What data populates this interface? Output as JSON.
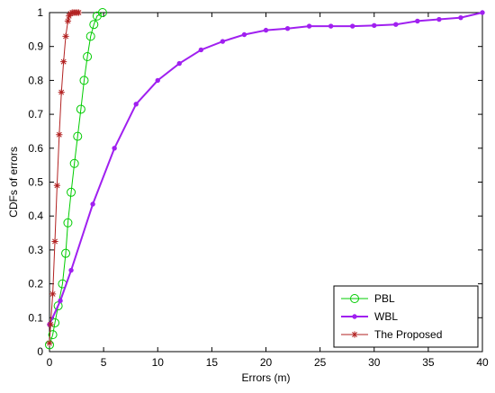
{
  "chart_data": {
    "type": "line",
    "title": "",
    "xlabel": "Errors (m)",
    "ylabel": "CDFs of errors",
    "xlim": [
      0,
      40
    ],
    "ylim": [
      0,
      1
    ],
    "xticks": [
      0,
      5,
      10,
      15,
      20,
      25,
      30,
      35,
      40
    ],
    "yticks": [
      0,
      0.1,
      0.2,
      0.3,
      0.4,
      0.5,
      0.6,
      0.7,
      0.8,
      0.9,
      1
    ],
    "grid": false,
    "legend_position": "bottom-right",
    "series": [
      {
        "name": "PBL",
        "color": "#00cc00",
        "marker": "circle",
        "x": [
          0.0,
          0.3,
          0.5,
          0.8,
          1.2,
          1.5,
          1.7,
          2.0,
          2.3,
          2.6,
          2.9,
          3.2,
          3.5,
          3.8,
          4.1,
          4.4,
          4.9
        ],
        "y": [
          0.02,
          0.05,
          0.085,
          0.135,
          0.2,
          0.29,
          0.38,
          0.47,
          0.555,
          0.635,
          0.715,
          0.8,
          0.87,
          0.93,
          0.965,
          0.99,
          1.0
        ]
      },
      {
        "name": "WBL",
        "color": "#a020f0",
        "marker": "dot",
        "x": [
          0.0,
          1.0,
          2.0,
          4.0,
          6.0,
          8.0,
          10.0,
          12.0,
          14.0,
          16.0,
          18.0,
          20.0,
          22.0,
          24.0,
          26.0,
          28.0,
          30.0,
          32.0,
          34.0,
          36.0,
          38.0,
          40.0
        ],
        "y": [
          0.08,
          0.15,
          0.24,
          0.435,
          0.6,
          0.73,
          0.8,
          0.85,
          0.89,
          0.915,
          0.935,
          0.948,
          0.953,
          0.96,
          0.96,
          0.96,
          0.962,
          0.965,
          0.975,
          0.98,
          0.985,
          1.0
        ]
      },
      {
        "name": "The Proposed",
        "color": "#b22222",
        "marker": "star",
        "x": [
          0.0,
          0.1,
          0.3,
          0.5,
          0.7,
          0.9,
          1.1,
          1.3,
          1.5,
          1.7,
          1.8,
          1.95,
          2.1,
          2.25,
          2.4,
          2.55,
          2.7
        ],
        "y": [
          0.025,
          0.08,
          0.17,
          0.325,
          0.49,
          0.64,
          0.765,
          0.855,
          0.93,
          0.975,
          0.99,
          0.997,
          1.0,
          1.0,
          1.0,
          1.0,
          1.0
        ]
      }
    ]
  }
}
